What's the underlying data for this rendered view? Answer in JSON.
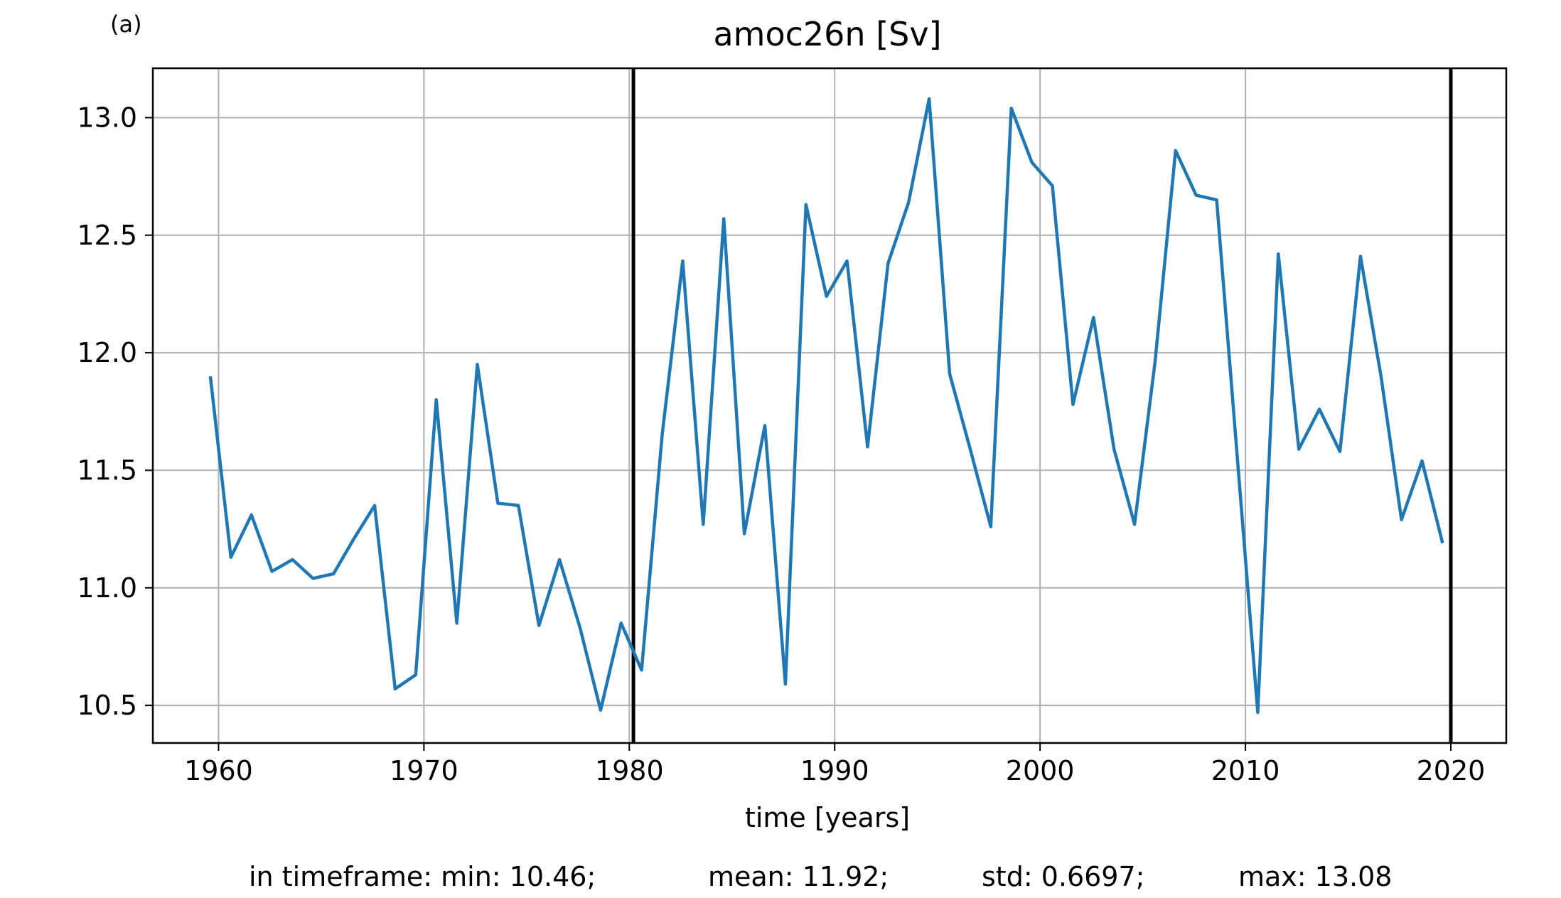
{
  "panel_label": "(a)",
  "chart_data": {
    "type": "line",
    "title": "amoc26n [Sv]",
    "xlabel": "time [years]",
    "ylabel": "",
    "xlim": [
      1956.8,
      2022.7
    ],
    "ylim": [
      10.34,
      13.21
    ],
    "xticks": [
      1960,
      1970,
      1980,
      1990,
      2000,
      2010,
      2020
    ],
    "yticks": [
      10.5,
      11.0,
      11.5,
      12.0,
      12.5,
      13.0
    ],
    "xtick_labels": [
      "1960",
      "1970",
      "1980",
      "1990",
      "2000",
      "2010",
      "2020"
    ],
    "ytick_labels": [
      "10.5",
      "11.0",
      "11.5",
      "12.0",
      "12.5",
      "13.0"
    ],
    "grid": true,
    "line_color": "#1f77b4",
    "vlines": [
      1980.2,
      2020.0
    ],
    "vline_color": "#000000",
    "series": [
      {
        "x": [
          1959.6,
          1960.6,
          1961.6,
          1962.6,
          1963.6,
          1964.6,
          1965.6,
          1966.6,
          1967.6,
          1968.6,
          1969.6,
          1970.6,
          1971.6,
          1972.6,
          1973.6,
          1974.6,
          1975.6,
          1976.6,
          1977.6,
          1978.6,
          1979.6,
          1980.6,
          1981.6,
          1982.6,
          1983.6,
          1984.6,
          1985.6,
          1986.6,
          1987.6,
          1988.6,
          1989.6,
          1990.6,
          1991.6,
          1992.6,
          1993.6,
          1994.6,
          1995.6,
          1996.6,
          1997.6,
          1998.6,
          1999.6,
          2000.6,
          2001.6,
          2002.6,
          2003.6,
          2004.6,
          2005.6,
          2006.6,
          2007.6,
          2008.6,
          2009.6,
          2010.6,
          2011.6,
          2012.6,
          2013.6,
          2014.6,
          2015.6,
          2016.6,
          2017.6,
          2018.6,
          2019.6
        ],
        "y": [
          11.9,
          11.13,
          11.31,
          11.07,
          11.12,
          11.04,
          11.06,
          11.21,
          11.35,
          10.57,
          10.63,
          11.8,
          10.85,
          11.95,
          11.36,
          11.35,
          10.84,
          11.12,
          10.83,
          10.48,
          10.85,
          10.65,
          11.65,
          12.39,
          11.27,
          12.57,
          11.23,
          11.69,
          10.59,
          12.63,
          12.24,
          12.39,
          11.6,
          12.38,
          12.64,
          13.08,
          11.91,
          11.59,
          11.26,
          13.04,
          12.81,
          12.71,
          11.78,
          12.15,
          11.59,
          11.27,
          11.96,
          12.86,
          12.67,
          12.65,
          11.56,
          10.47,
          12.42,
          11.59,
          11.76,
          11.58,
          12.41,
          11.9,
          11.29,
          11.54,
          11.19
        ]
      }
    ],
    "stats_line": {
      "min": "in timeframe: min: 10.46;",
      "mean": "mean: 11.92;",
      "std": "std: 0.6697;",
      "max": "max: 13.08"
    }
  }
}
